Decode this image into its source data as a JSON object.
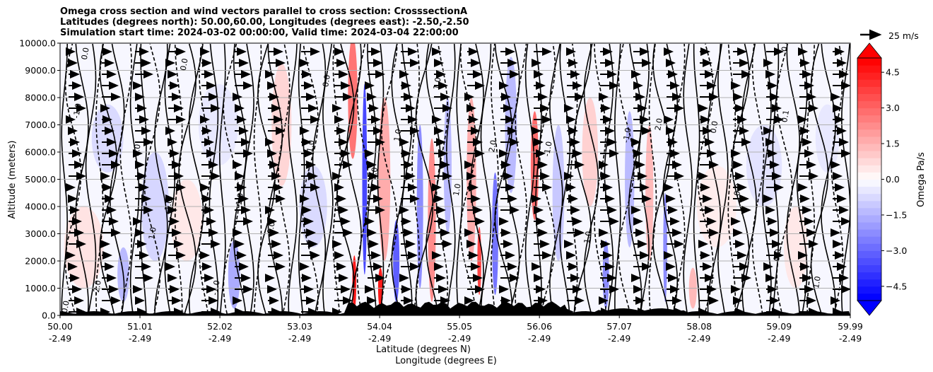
{
  "chart_data": {
    "type": "contour",
    "title_lines": [
      "Omega cross section and wind vectors parallel to cross section: CrosssectionA",
      "Latitudes (degrees north): 50.00,60.00, Longitudes (degrees east): -2.50,-2.50",
      "Simulation start time: 2024-03-02 00:00:00, Valid time: 2024-03-04 22:00:00"
    ],
    "ylabel": "Altitude (meters)",
    "xlabel_lines": [
      "Latitude (degrees N)",
      "Longitude (degrees E)"
    ],
    "ylim": [
      0,
      10000
    ],
    "y_ticks": [
      {
        "value": 0,
        "label": "0.0"
      },
      {
        "value": 1000,
        "label": "1000.0"
      },
      {
        "value": 2000,
        "label": "2000.0"
      },
      {
        "value": 3000,
        "label": "3000.0"
      },
      {
        "value": 4000,
        "label": "4000.0"
      },
      {
        "value": 5000,
        "label": "5000.0"
      },
      {
        "value": 6000,
        "label": "6000.0"
      },
      {
        "value": 7000,
        "label": "7000.0"
      },
      {
        "value": 8000,
        "label": "8000.0"
      },
      {
        "value": 9000,
        "label": "9000.0"
      },
      {
        "value": 10000,
        "label": "10000.0"
      }
    ],
    "xlim": [
      50.0,
      59.99
    ],
    "x_ticks": [
      {
        "value": 50.0,
        "lat": "50.00",
        "lon": "-2.49"
      },
      {
        "value": 51.01,
        "lat": "51.01",
        "lon": "-2.49"
      },
      {
        "value": 52.02,
        "lat": "52.02",
        "lon": "-2.49"
      },
      {
        "value": 53.03,
        "lat": "53.03",
        "lon": "-2.49"
      },
      {
        "value": 54.04,
        "lat": "54.04",
        "lon": "-2.49"
      },
      {
        "value": 55.05,
        "lat": "55.05",
        "lon": "-2.49"
      },
      {
        "value": 56.06,
        "lat": "56.06",
        "lon": "-2.49"
      },
      {
        "value": 57.07,
        "lat": "57.07",
        "lon": "-2.49"
      },
      {
        "value": 58.08,
        "lat": "58.08",
        "lon": "-2.49"
      },
      {
        "value": 59.09,
        "lat": "59.09",
        "lon": "-2.49"
      },
      {
        "value": 59.99,
        "lat": "59.99",
        "lon": "-2.49"
      }
    ],
    "colorbar": {
      "label": "Omega Pa/s",
      "range": [
        -5.1,
        5.1
      ],
      "ticks": [
        {
          "value": 4.5,
          "label": "4.5"
        },
        {
          "value": 3.0,
          "label": "3.0"
        },
        {
          "value": 1.5,
          "label": "1.5"
        },
        {
          "value": 0.0,
          "label": "0.0"
        },
        {
          "value": -1.5,
          "label": "−1.5"
        },
        {
          "value": -3.0,
          "label": "−3.0"
        },
        {
          "value": -4.5,
          "label": "−4.5"
        }
      ]
    },
    "quiver_key": "25 m/s",
    "omega_cells": [
      {
        "lat": 50.3,
        "z": 2500,
        "omega": 0.6,
        "w": 0.5,
        "h": 3000
      },
      {
        "lat": 50.6,
        "z": 6500,
        "omega": -0.8,
        "w": 0.4,
        "h": 2500
      },
      {
        "lat": 50.8,
        "z": 1500,
        "omega": -1.5,
        "w": 0.15,
        "h": 2000
      },
      {
        "lat": 51.2,
        "z": 4000,
        "omega": -0.9,
        "w": 0.35,
        "h": 4000
      },
      {
        "lat": 51.6,
        "z": 3500,
        "omega": 0.5,
        "w": 0.4,
        "h": 3000
      },
      {
        "lat": 52.0,
        "z": 7000,
        "omega": -0.5,
        "w": 0.5,
        "h": 3000
      },
      {
        "lat": 52.2,
        "z": 1500,
        "omega": -1.8,
        "w": 0.15,
        "h": 2500
      },
      {
        "lat": 52.8,
        "z": 7000,
        "omega": 0.9,
        "w": 0.25,
        "h": 4500
      },
      {
        "lat": 53.2,
        "z": 4000,
        "omega": -0.8,
        "w": 0.35,
        "h": 3000
      },
      {
        "lat": 53.7,
        "z": 8000,
        "omega": 3.0,
        "w": 0.12,
        "h": 4500
      },
      {
        "lat": 53.72,
        "z": 1200,
        "omega": 5.0,
        "w": 0.05,
        "h": 2000
      },
      {
        "lat": 53.85,
        "z": 5000,
        "omega": -4.0,
        "w": 0.06,
        "h": 7000
      },
      {
        "lat": 54.05,
        "z": 1000,
        "omega": 5.0,
        "w": 0.06,
        "h": 1500
      },
      {
        "lat": 54.1,
        "z": 5000,
        "omega": 1.8,
        "w": 0.15,
        "h": 6000
      },
      {
        "lat": 54.25,
        "z": 2000,
        "omega": -3.5,
        "w": 0.08,
        "h": 3000
      },
      {
        "lat": 54.55,
        "z": 4000,
        "omega": -2.5,
        "w": 0.08,
        "h": 6000
      },
      {
        "lat": 54.7,
        "z": 3500,
        "omega": 2.5,
        "w": 0.1,
        "h": 6000
      },
      {
        "lat": 54.9,
        "z": 5500,
        "omega": -1.5,
        "w": 0.1,
        "h": 5000
      },
      {
        "lat": 55.2,
        "z": 5000,
        "omega": 1.8,
        "w": 0.12,
        "h": 6000
      },
      {
        "lat": 55.3,
        "z": 2000,
        "omega": 4.0,
        "w": 0.05,
        "h": 2500
      },
      {
        "lat": 55.5,
        "z": 3000,
        "omega": -3.0,
        "w": 0.08,
        "h": 4500
      },
      {
        "lat": 55.7,
        "z": 7000,
        "omega": -1.5,
        "w": 0.15,
        "h": 5000
      },
      {
        "lat": 56.0,
        "z": 5500,
        "omega": 3.2,
        "w": 0.1,
        "h": 4000
      },
      {
        "lat": 56.3,
        "z": 4500,
        "omega": -1.2,
        "w": 0.15,
        "h": 5000
      },
      {
        "lat": 56.7,
        "z": 6000,
        "omega": 1.0,
        "w": 0.2,
        "h": 4000
      },
      {
        "lat": 56.9,
        "z": 1500,
        "omega": -2.5,
        "w": 0.08,
        "h": 2500
      },
      {
        "lat": 57.2,
        "z": 5000,
        "omega": -1.5,
        "w": 0.12,
        "h": 5000
      },
      {
        "lat": 57.45,
        "z": 4500,
        "omega": 1.5,
        "w": 0.1,
        "h": 5000
      },
      {
        "lat": 57.65,
        "z": 2500,
        "omega": -2.5,
        "w": 0.05,
        "h": 4000
      },
      {
        "lat": 58.0,
        "z": 1000,
        "omega": 1.5,
        "w": 0.1,
        "h": 1500
      },
      {
        "lat": 58.3,
        "z": 4000,
        "omega": 0.4,
        "w": 0.5,
        "h": 3000
      },
      {
        "lat": 58.9,
        "z": 5500,
        "omega": -0.6,
        "w": 0.45,
        "h": 3000
      },
      {
        "lat": 59.3,
        "z": 2500,
        "omega": 0.5,
        "w": 0.3,
        "h": 3000
      },
      {
        "lat": 59.7,
        "z": 6500,
        "omega": -0.5,
        "w": 0.3,
        "h": 2500
      }
    ],
    "contour_labels": [
      {
        "lat": 50.1,
        "z": 300,
        "text": "0.0"
      },
      {
        "lat": 50.35,
        "z": 9600,
        "text": "0.0"
      },
      {
        "lat": 50.25,
        "z": 7500,
        "text": "-1.0"
      },
      {
        "lat": 50.5,
        "z": 1000,
        "text": "-2.0"
      },
      {
        "lat": 51.0,
        "z": 6000,
        "text": "-1.0"
      },
      {
        "lat": 51.2,
        "z": 3000,
        "text": "1.0"
      },
      {
        "lat": 51.4,
        "z": 4000,
        "text": "-1.0"
      },
      {
        "lat": 51.6,
        "z": 9200,
        "text": "0.0"
      },
      {
        "lat": 52.0,
        "z": 1000,
        "text": "-1.0"
      },
      {
        "lat": 52.3,
        "z": 4200,
        "text": "-1.0"
      },
      {
        "lat": 52.7,
        "z": 3200,
        "text": "0.0"
      },
      {
        "lat": 53.2,
        "z": 6200,
        "text": "1.0"
      },
      {
        "lat": 53.4,
        "z": 8600,
        "text": "0.0"
      },
      {
        "lat": 54.0,
        "z": 5200,
        "text": "2.0"
      },
      {
        "lat": 54.3,
        "z": 6600,
        "text": "1.0"
      },
      {
        "lat": 54.8,
        "z": 8500,
        "text": "1.0"
      },
      {
        "lat": 55.05,
        "z": 4600,
        "text": "1.0"
      },
      {
        "lat": 55.5,
        "z": 6200,
        "text": "2.0"
      },
      {
        "lat": 56.2,
        "z": 6100,
        "text": "-1.0"
      },
      {
        "lat": 56.7,
        "z": 2800,
        "text": "-1.0"
      },
      {
        "lat": 57.2,
        "z": 6600,
        "text": "-1.0"
      },
      {
        "lat": 57.6,
        "z": 7000,
        "text": "2.0"
      },
      {
        "lat": 58.3,
        "z": 6900,
        "text": "0.0"
      },
      {
        "lat": 58.6,
        "z": 4600,
        "text": "0.0"
      },
      {
        "lat": 59.1,
        "z": 2200,
        "text": "0.0"
      },
      {
        "lat": 59.6,
        "z": 1200,
        "text": "1.0"
      },
      {
        "lat": 59.2,
        "z": 9900,
        "text": "0.0"
      },
      {
        "lat": 59.2,
        "z": 7300,
        "text": "0.1"
      }
    ]
  }
}
